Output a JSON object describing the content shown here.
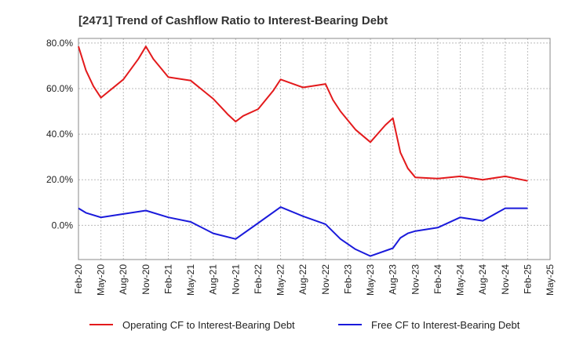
{
  "chart_data": {
    "type": "line",
    "title": "[2471]  Trend of Cashflow Ratio to Interest-Bearing Debt",
    "xlabel": "",
    "ylabel": "",
    "ylim": [
      -15,
      82
    ],
    "yticks": [
      "80.0%",
      "60.0%",
      "40.0%",
      "20.0%",
      "0.0%"
    ],
    "ytick_values": [
      80,
      60,
      40,
      20,
      0
    ],
    "xlim": [
      "Feb-20",
      "Feb-25"
    ],
    "xticks": [
      "Feb-20",
      "May-20",
      "Aug-20",
      "Nov-20",
      "Feb-21",
      "May-21",
      "Aug-21",
      "Nov-21",
      "Feb-22",
      "May-22",
      "Aug-22",
      "Nov-22",
      "Feb-23",
      "May-23",
      "Aug-23",
      "Nov-23",
      "Feb-24",
      "May-24",
      "Aug-24",
      "Nov-24",
      "Feb-25",
      "May-25"
    ],
    "grid": true,
    "legend_position": "bottom",
    "series": [
      {
        "name": "Operating CF to Interest-Bearing Debt",
        "color": "#e31a1c",
        "x": [
          "Feb-20",
          "Mar-20",
          "Apr-20",
          "May-20",
          "Aug-20",
          "Oct-20",
          "Nov-20",
          "Dec-20",
          "Jan-21",
          "Feb-21",
          "May-21",
          "Aug-21",
          "Sep-21",
          "Oct-21",
          "Nov-21",
          "Dec-21",
          "Feb-22",
          "Apr-22",
          "May-22",
          "Aug-22",
          "Oct-22",
          "Nov-22",
          "Dec-22",
          "Jan-23",
          "Mar-23",
          "May-23",
          "Jul-23",
          "Aug-23",
          "Sep-23",
          "Oct-23",
          "Nov-23",
          "Feb-24",
          "May-24",
          "Aug-24",
          "Nov-24",
          "Feb-25"
        ],
        "values": [
          78.5,
          68,
          61,
          56,
          64,
          73,
          78.5,
          73,
          69,
          65,
          63.5,
          55.5,
          52,
          48.5,
          45.5,
          48,
          51,
          59,
          64,
          60.5,
          61.5,
          62,
          55,
          50,
          42,
          36.5,
          44,
          47,
          32,
          25,
          21,
          20.5,
          21.5,
          20,
          21.5,
          19.5
        ]
      },
      {
        "name": "Free CF to Interest-Bearing Debt",
        "color": "#1a1adb",
        "x": [
          "Feb-20",
          "Mar-20",
          "May-20",
          "Aug-20",
          "Nov-20",
          "Feb-21",
          "May-21",
          "Aug-21",
          "Nov-21",
          "Feb-22",
          "May-22",
          "Aug-22",
          "Nov-22",
          "Jan-23",
          "Mar-23",
          "May-23",
          "Aug-23",
          "Sep-23",
          "Oct-23",
          "Nov-23",
          "Feb-24",
          "May-24",
          "Aug-24",
          "Nov-24",
          "Feb-25"
        ],
        "values": [
          7.5,
          5.5,
          3.5,
          5,
          6.5,
          3.5,
          1.5,
          -3.5,
          -6,
          1,
          8,
          4,
          0.5,
          -6,
          -10.5,
          -13.5,
          -10,
          -5.5,
          -3.5,
          -2.5,
          -1,
          3.5,
          2,
          7.5,
          7.5
        ]
      }
    ]
  }
}
